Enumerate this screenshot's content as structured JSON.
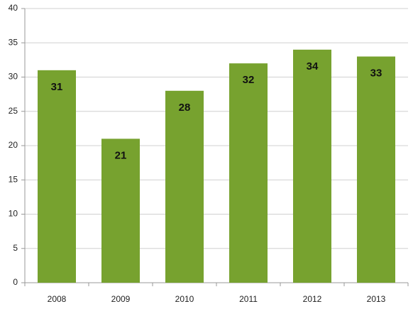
{
  "chart_data": {
    "type": "bar",
    "categories": [
      "2008",
      "2009",
      "2010",
      "2011",
      "2012",
      "2013"
    ],
    "values": [
      31,
      21,
      28,
      32,
      34,
      33
    ],
    "color": "#77a22f",
    "ylim": [
      0,
      40
    ],
    "yticks": [
      0,
      5,
      10,
      15,
      20,
      25,
      30,
      35,
      40
    ],
    "grid": true
  }
}
